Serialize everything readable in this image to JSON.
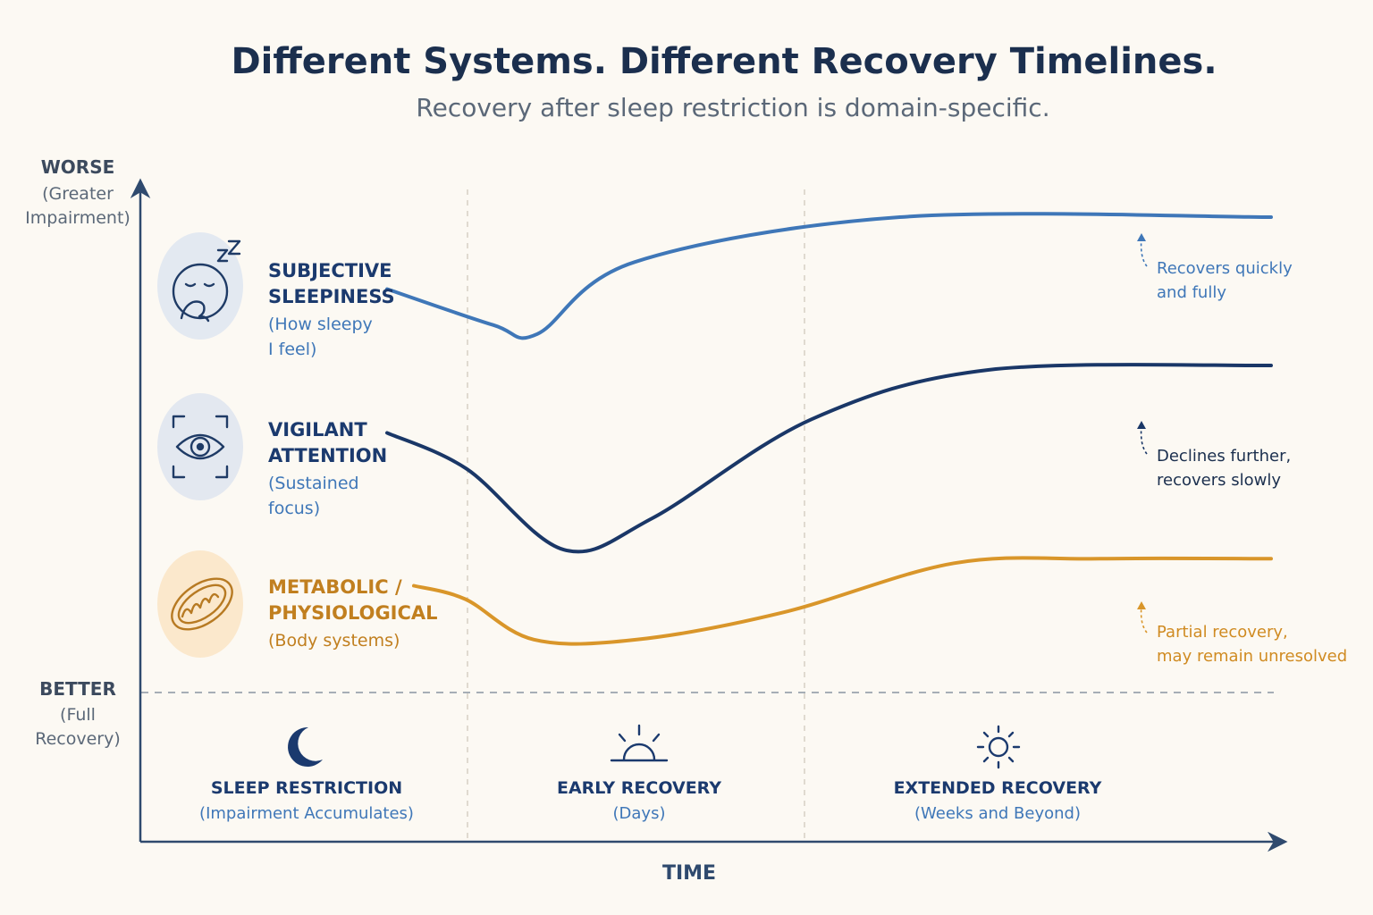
{
  "chart_data": {
    "type": "line",
    "title": "Different Systems. Different Recovery Timelines.",
    "subtitle": "Recovery after sleep restriction is domain-specific.",
    "xlabel": "TIME",
    "y_top_label": "WORSE",
    "y_top_sub": [
      "(Greater",
      "Impairment)"
    ],
    "y_bottom_label": "BETTER",
    "y_bottom_sub": [
      "(Full",
      "Recovery)"
    ],
    "phases": [
      {
        "icon": "moon-icon",
        "title": "SLEEP RESTRICTION",
        "subtitle": "(Impairment Accumulates)"
      },
      {
        "icon": "sunrise-icon",
        "title": "EARLY RECOVERY",
        "subtitle": "(Days)"
      },
      {
        "icon": "sun-icon",
        "title": "EXTENDED RECOVERY",
        "subtitle": "(Weeks and Beyond)"
      }
    ],
    "series": [
      {
        "id": "subjective",
        "name": [
          "SUBJECTIVE",
          "SLEEPINESS"
        ],
        "sub": [
          "(How sleepy",
          "I feel)"
        ],
        "icon": "yawning-face-icon",
        "color": "#3f77b8",
        "icon_bg": "#e3e9f1",
        "note": [
          "Recovers quickly",
          "and fully"
        ],
        "points": [
          [
            0.0,
            0.84
          ],
          [
            0.12,
            0.76
          ],
          [
            0.17,
            0.74
          ],
          [
            0.28,
            0.9
          ],
          [
            0.58,
            1.0
          ],
          [
            1.0,
            1.0
          ]
        ]
      },
      {
        "id": "vigilant",
        "name": [
          "VIGILANT",
          "ATTENTION"
        ],
        "sub": [
          "(Sustained",
          "focus)"
        ],
        "icon": "eye-focus-icon",
        "color": "#1a3767",
        "icon_bg": "#e3e8f0",
        "note": [
          "Declines further,",
          "recovers slowly"
        ],
        "points": [
          [
            0.0,
            0.52
          ],
          [
            0.09,
            0.44
          ],
          [
            0.2,
            0.26
          ],
          [
            0.3,
            0.33
          ],
          [
            0.48,
            0.55
          ],
          [
            0.68,
            0.66
          ],
          [
            1.0,
            0.67
          ]
        ]
      },
      {
        "id": "metabolic",
        "name": [
          "METABOLIC /",
          "PHYSIOLOGICAL"
        ],
        "sub": [
          "(Body systems)"
        ],
        "icon": "mitochondria-icon",
        "color": "#d9962a",
        "icon_bg": "#fbe8cc",
        "note": [
          "Partial recovery,",
          "may remain unresolved"
        ],
        "points": [
          [
            0.0,
            0.18
          ],
          [
            0.06,
            0.15
          ],
          [
            0.14,
            0.06
          ],
          [
            0.26,
            0.06
          ],
          [
            0.43,
            0.12
          ],
          [
            0.63,
            0.23
          ],
          [
            0.8,
            0.24
          ],
          [
            1.0,
            0.24
          ]
        ]
      }
    ],
    "reference_line": "full recovery baseline (dashed)"
  }
}
